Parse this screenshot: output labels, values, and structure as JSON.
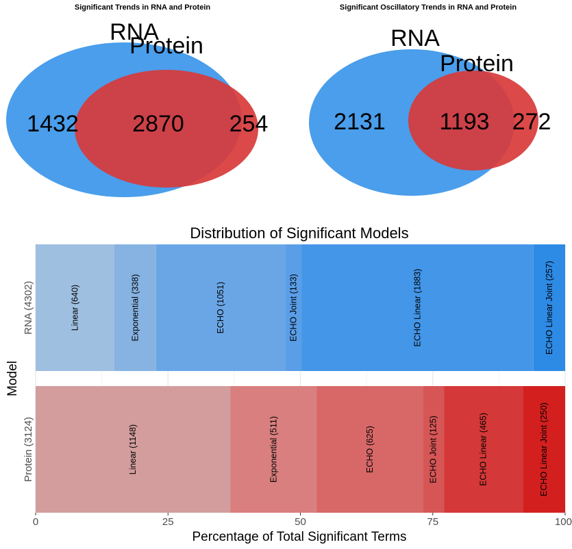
{
  "chart_data": [
    {
      "type": "venn",
      "title": "Significant Trends in RNA and Protein",
      "sets": [
        "RNA",
        "Protein"
      ],
      "values": {
        "rna_only": 1432,
        "both": 2870,
        "protein_only": 254
      },
      "colors": {
        "rna": "#4a9eeb",
        "protein": "#d83a3a",
        "overlap": "#b9314a"
      }
    },
    {
      "type": "venn",
      "title": "Significant Oscillatory Trends in RNA and Protein",
      "sets": [
        "RNA",
        "Protein"
      ],
      "values": {
        "rna_only": 2131,
        "both": 1193,
        "protein_only": 272
      },
      "colors": {
        "rna": "#4a9eeb",
        "protein": "#d83a3a",
        "overlap": "#b9314a"
      }
    },
    {
      "type": "bar",
      "orientation": "horizontal-stacked",
      "title": "Distribution of Significant Models",
      "xlabel": "Percentage of Total Significant Terms",
      "ylabel": "Model",
      "xlim": [
        0,
        100
      ],
      "xticks": [
        0,
        25,
        50,
        75,
        100
      ],
      "grid": true,
      "rows": [
        {
          "label": "RNA (4302)",
          "total": 4302,
          "segments": [
            {
              "label": "Linear (640)",
              "count": 640,
              "color": "#9fbfe1"
            },
            {
              "label": "Exponential (338)",
              "count": 338,
              "color": "#87b3e2"
            },
            {
              "label": "ECHO (1051)",
              "count": 1051,
              "color": "#6aa6e6"
            },
            {
              "label": "ECHO Joint (133)",
              "count": 133,
              "color": "#5a9ee8"
            },
            {
              "label": "ECHO Linear (1883)",
              "count": 1883,
              "color": "#4396e8"
            },
            {
              "label": "ECHO Linear Joint (257)",
              "count": 257,
              "color": "#2d8be6"
            }
          ]
        },
        {
          "label": "Protein (3124)",
          "total": 3124,
          "segments": [
            {
              "label": "Linear (1148)",
              "count": 1148,
              "color": "#d39d9d"
            },
            {
              "label": "Exponential (511)",
              "count": 511,
              "color": "#d97f7f"
            },
            {
              "label": "ECHO (625)",
              "count": 625,
              "color": "#d86868"
            },
            {
              "label": "ECHO Joint (125)",
              "count": 125,
              "color": "#d65656"
            },
            {
              "label": "ECHO Linear (465)",
              "count": 465,
              "color": "#d53838"
            },
            {
              "label": "ECHO Linear Joint (250)",
              "count": 250,
              "color": "#d41f1f"
            }
          ]
        }
      ]
    }
  ]
}
